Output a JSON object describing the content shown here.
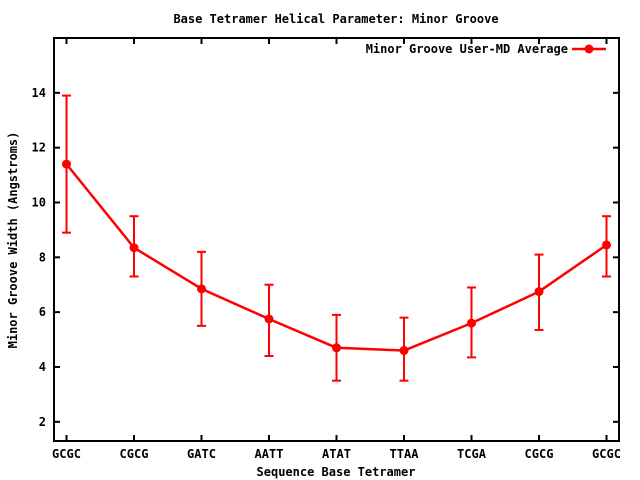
{
  "chart_data": {
    "type": "line",
    "title": "Base Tetramer Helical Parameter: Minor Groove",
    "xlabel": "Sequence Base Tetramer",
    "ylabel": "Minor Groove Width (Angstroms)",
    "categories": [
      "GCGC",
      "CGCG",
      "GATC",
      "AATT",
      "ATAT",
      "TTAA",
      "TCGA",
      "CGCG",
      "GCGC"
    ],
    "series": [
      {
        "name": "Minor Groove User-MD Average",
        "values": [
          11.4,
          8.35,
          6.85,
          5.75,
          4.7,
          4.6,
          5.6,
          6.75,
          8.45
        ],
        "error_low": [
          8.9,
          7.3,
          5.5,
          4.4,
          3.5,
          3.5,
          4.35,
          5.35,
          7.3
        ],
        "error_high": [
          13.9,
          9.5,
          8.2,
          7.0,
          5.9,
          5.8,
          6.9,
          8.1,
          9.5
        ],
        "color": "#ff0000",
        "marker": "filled-circle",
        "style": "linespoints-with-errorbars"
      }
    ],
    "ylim": [
      1.3,
      16.0
    ],
    "yticks": [
      2,
      4,
      6,
      8,
      10,
      12,
      14
    ],
    "grid": false,
    "legend_position": "top-right-inside",
    "background_color": "#ffffff",
    "text_color": "#000000",
    "border_color": "#000000"
  }
}
